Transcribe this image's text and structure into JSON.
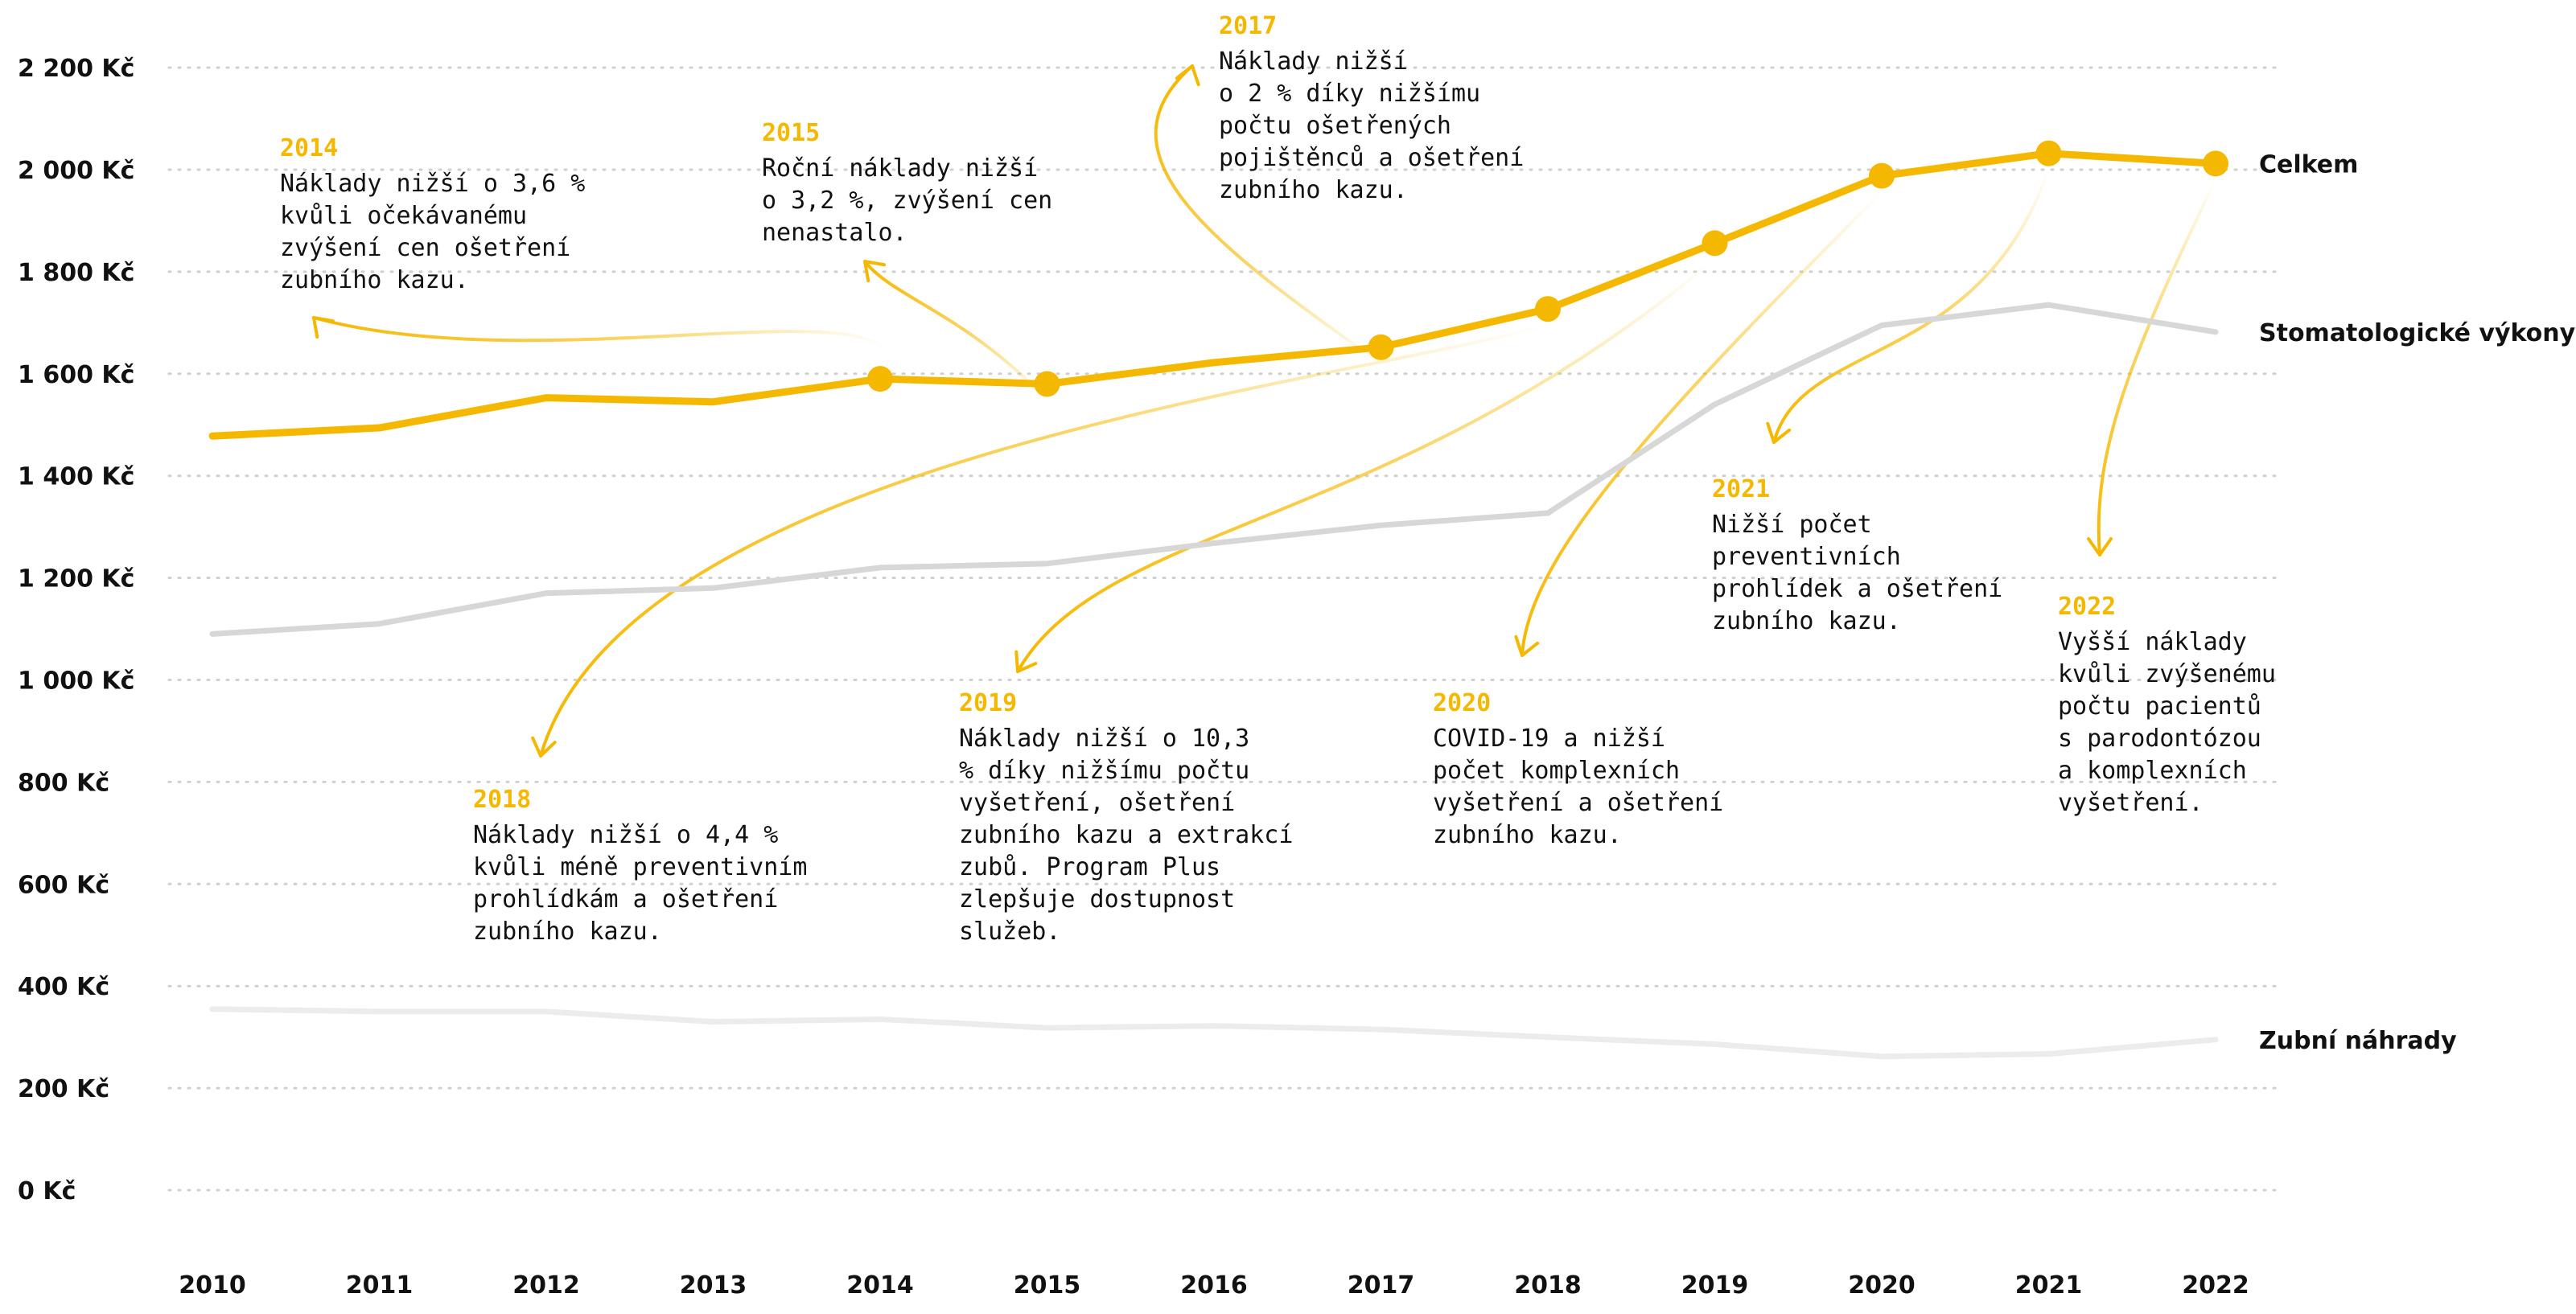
{
  "chart_data": {
    "type": "line",
    "x": [
      "2010",
      "2011",
      "2012",
      "2013",
      "2014",
      "2015",
      "2016",
      "2017",
      "2018",
      "2019",
      "2020",
      "2021",
      "2022"
    ],
    "y_ticks": [
      "0 Kč",
      "200 Kč",
      "400 Kč",
      "600 Kč",
      "800 Kč",
      "1 000 Kč",
      "1 200 Kč",
      "1 400 Kč",
      "1 600 Kč",
      "1 800 Kč",
      "2 000 Kč",
      "2 200 Kč"
    ],
    "ylim": [
      0,
      2200
    ],
    "grid": true,
    "series": [
      {
        "name": "Celkem",
        "color": "#f5b800",
        "values": [
          1478,
          1494,
          1553,
          1545,
          1590,
          1580,
          1622,
          1652,
          1727,
          1856,
          1988,
          2032,
          2012
        ],
        "markers": [
          "2014",
          "2015",
          "2017",
          "2018",
          "2019",
          "2020",
          "2021",
          "2022"
        ]
      },
      {
        "name": "Stomatologické výkony",
        "color": "#d7d7d7",
        "values": [
          1090,
          1110,
          1170,
          1180,
          1220,
          1228,
          1268,
          1303,
          1327,
          1540,
          1695,
          1735,
          1682
        ]
      },
      {
        "name": "Zubní náhrady",
        "color": "#ececec",
        "values": [
          355,
          350,
          350,
          330,
          335,
          318,
          322,
          315,
          300,
          286,
          262,
          267,
          295
        ]
      }
    ],
    "annotations": [
      {
        "year": "2014",
        "lines": [
          "Náklady nižší o 3,6 %",
          "kvůli očekávanému",
          "zvýšení cen ošetření",
          "zubního kazu."
        ]
      },
      {
        "year": "2015",
        "lines": [
          "Roční náklady nižší",
          "o 3,2 %, zvýšení cen",
          "nenastalo."
        ]
      },
      {
        "year": "2017",
        "lines": [
          "Náklady nižší",
          "o 2 % díky nižšímu",
          "počtu ošetřených",
          "pojištěnců a ošetření",
          "zubního kazu."
        ]
      },
      {
        "year": "2018",
        "lines": [
          "Náklady nižší o 4,4 %",
          "kvůli méně preventivním",
          "prohlídkám a ošetření",
          "zubního kazu."
        ]
      },
      {
        "year": "2019",
        "lines": [
          "Náklady nižší o 10,3",
          "% díky nižšímu počtu",
          "vyšetření, ošetření",
          "zubního kazu a extrakcí",
          "zubů. Program Plus",
          "zlepšuje dostupnost",
          "služeb."
        ]
      },
      {
        "year": "2020",
        "lines": [
          "COVID-19 a nižší",
          "počet komplexních",
          "vyšetření a ošetření",
          "zubního kazu."
        ]
      },
      {
        "year": "2021",
        "lines": [
          "Nižší počet",
          "preventivních",
          "prohlídek a ošetření",
          "zubního kazu."
        ]
      },
      {
        "year": "2022",
        "lines": [
          "Vyšší náklady",
          "kvůli zvýšenému",
          "počtu pacientů",
          "s parodontózou",
          "a komplexních",
          "vyšetření."
        ]
      }
    ]
  }
}
